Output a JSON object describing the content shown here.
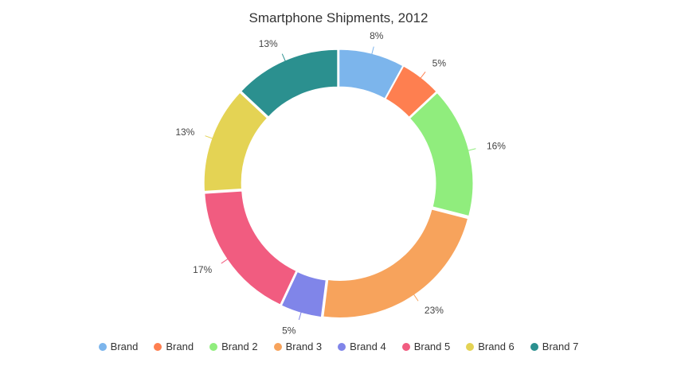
{
  "chart_data": {
    "type": "pie",
    "donut": true,
    "title": "Smartphone Shipments, 2012",
    "categories": [
      "Brand",
      "Brand",
      "Brand 2",
      "Brand 3",
      "Brand 4",
      "Brand 5",
      "Brand 6",
      "Brand 7"
    ],
    "values": [
      8,
      5,
      16,
      23,
      5,
      17,
      13,
      13
    ],
    "labels": [
      "8%",
      "5%",
      "16%",
      "23%",
      "5%",
      "17%",
      "13%",
      "13%"
    ],
    "colors": [
      "#7cb5ec",
      "#fe7f50",
      "#90ed7d",
      "#f7a35c",
      "#8085e9",
      "#f15c80",
      "#e4d354",
      "#2b908f"
    ],
    "legend_position": "bottom"
  }
}
